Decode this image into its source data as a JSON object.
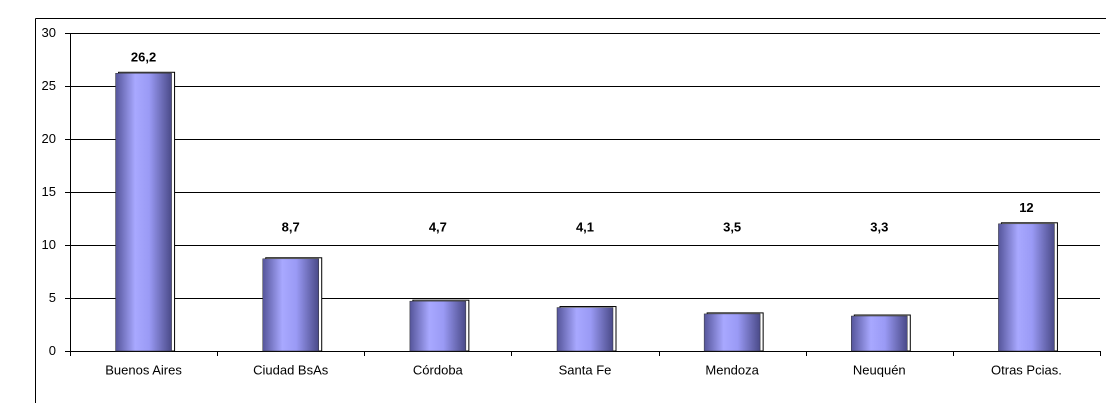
{
  "chart_data": {
    "type": "bar",
    "categories": [
      "Buenos Aires",
      "Ciudad BsAs",
      "Córdoba",
      "Santa Fe",
      "Mendoza",
      "Neuquén",
      "Otras Pcias."
    ],
    "values": [
      26.2,
      8.7,
      4.7,
      4.1,
      3.5,
      3.3,
      12
    ],
    "value_labels": [
      "26,2",
      "8,7",
      "4,7",
      "4,1",
      "3,5",
      "3,3",
      "12"
    ],
    "color": "#9999ff",
    "ylim": [
      0,
      30
    ],
    "yticks": [
      0,
      5,
      10,
      15,
      20,
      25,
      30
    ],
    "grid": true
  }
}
